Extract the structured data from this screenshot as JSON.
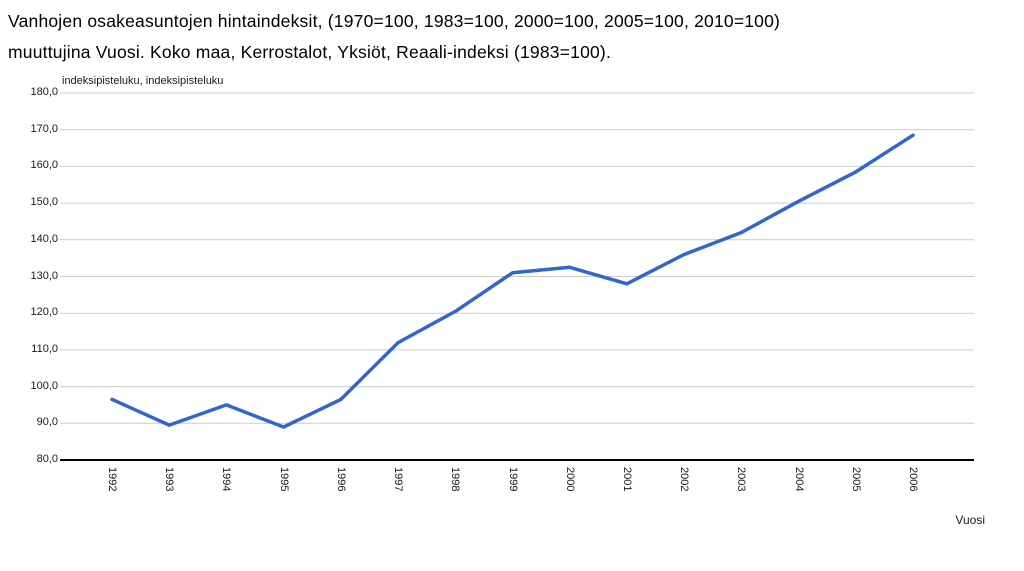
{
  "page": {
    "title_line1": "Vanhojen osakeasuntojen hintaindeksit, (1970=100, 1983=100, 2000=100, 2005=100, 2010=100)",
    "title_line2": "muuttujina Vuosi. Koko maa, Kerrostalot, Yksiöt, Reaali-indeksi (1983=100)."
  },
  "chart_data": {
    "type": "line",
    "title": "Vanhojen osakeasuntojen hintaindeksit, (1970=100, 1983=100, 2000=100, 2005=100, 2010=100) muuttujina Vuosi. Koko maa, Kerrostalot, Yksiöt, Reaali-indeksi (1983=100).",
    "xlabel": "Vuosi",
    "ylabel": "indeksipisteluku, indeksipisteluku",
    "categories": [
      "1992",
      "1993",
      "1994",
      "1995",
      "1996",
      "1997",
      "1998",
      "1999",
      "2000",
      "2001",
      "2002",
      "2003",
      "2004",
      "2005",
      "2006"
    ],
    "series": [
      {
        "name": "Koko maa, Kerrostalot, Yksiöt, Reaali-indeksi (1983=100)",
        "values": [
          96.5,
          89.5,
          95.0,
          89.0,
          96.5,
          112.0,
          120.5,
          131.0,
          132.5,
          128.0,
          136.0,
          142.0,
          150.5,
          158.5,
          168.5
        ]
      }
    ],
    "ylim": [
      80,
      180
    ],
    "y_tick_step": 10,
    "y_tick_labels": [
      "80,0",
      "90,0",
      "100,0",
      "110,0",
      "120,0",
      "130,0",
      "140,0",
      "150,0",
      "160,0",
      "170,0",
      "180,0"
    ],
    "grid": true,
    "legend": "none",
    "line_color": "#3366CC",
    "grid_color": "#CCCCCC",
    "axis_color": "#000000"
  }
}
